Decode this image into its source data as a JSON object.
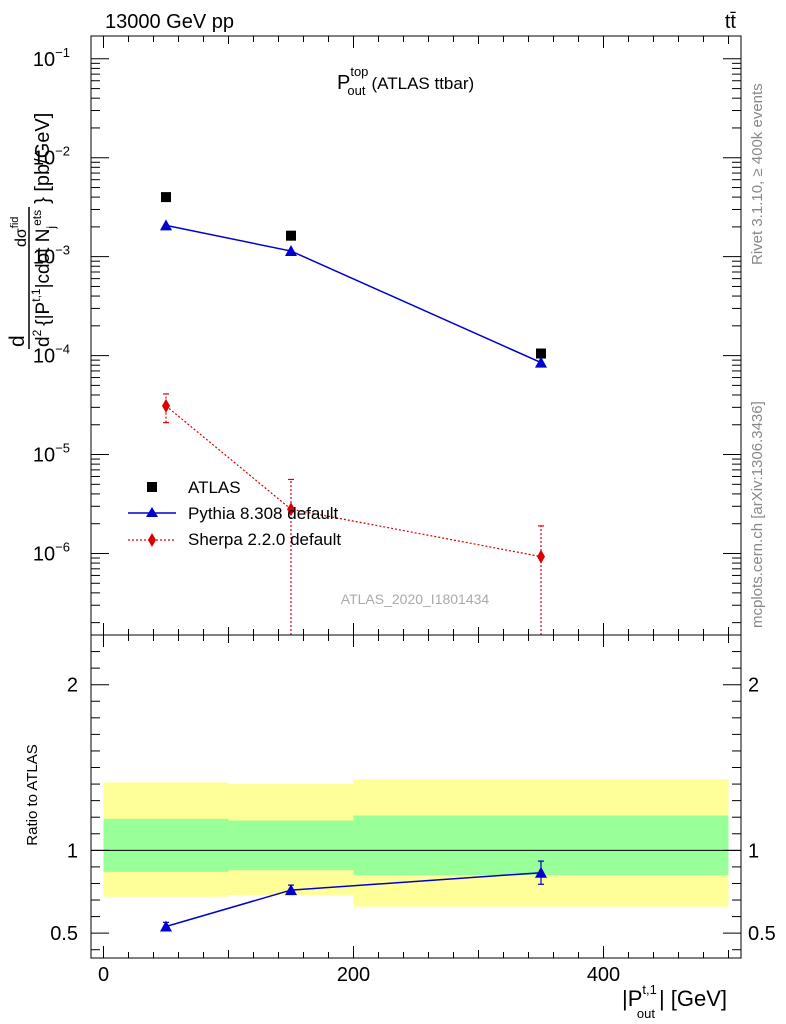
{
  "header": {
    "energy_label": "13000 GeV pp",
    "process_label": "tt̄"
  },
  "side_labels": {
    "rivet": "Rivet 3.1.10, ≥ 400k events",
    "mcplots": "mcplots.cern.ch [arXiv:1306.3436]"
  },
  "chart_data": [
    {
      "type": "scatter",
      "title_main": "P",
      "title_sup": "top",
      "title_sub": "out",
      "title_suffix": "(ATLAS ttbar)",
      "analysis_tag": "ATLAS_2020_I1801434",
      "ylabel_parts": [
        "d",
        "σ",
        "fid",
        "d",
        "2",
        "{|P",
        "t,1",
        "|cdot N",
        "j",
        "ets",
        "} [pb/GeV]"
      ],
      "yscale": "log",
      "ylim": [
        1.5e-07,
        0.17
      ],
      "xlim": [
        -10,
        510
      ],
      "y_ticklabels": [
        {
          "value": 1e-06,
          "base": "10",
          "exp": "−6"
        },
        {
          "value": 1e-05,
          "base": "10",
          "exp": "−5"
        },
        {
          "value": 0.0001,
          "base": "10",
          "exp": "−4"
        },
        {
          "value": 0.001,
          "base": "10",
          "exp": "−3"
        },
        {
          "value": 0.01,
          "base": "10",
          "exp": "−2"
        },
        {
          "value": 0.1,
          "base": "10",
          "exp": "−1"
        }
      ],
      "legend_position": "lower-left",
      "series": [
        {
          "name": "ATLAS",
          "color": "#000000",
          "marker": "square",
          "x": [
            50,
            150,
            350
          ],
          "y": [
            0.004,
            0.00163,
            0.000105
          ]
        },
        {
          "name": "Pythia 8.308 default",
          "color": "#0000cc",
          "marker": "triangle",
          "line": "solid",
          "x": [
            50,
            150,
            350
          ],
          "y": [
            0.00207,
            0.00114,
            8.5e-05
          ]
        },
        {
          "name": "Sherpa 2.2.0 default",
          "color": "#dd0000",
          "marker": "diamond",
          "line": "dotted",
          "x": [
            50,
            150,
            350
          ],
          "y": [
            3.1e-05,
            2.8e-06,
            9.3e-07
          ],
          "yerr_low": [
            2.1e-05,
            1e-07,
            1e-07
          ],
          "yerr_high": [
            4.1e-05,
            5.6e-06,
            1.9e-06
          ]
        }
      ]
    },
    {
      "type": "scatter",
      "ylabel": "Ratio to ATLAS",
      "xlabel_main": "|P",
      "xlabel_sup": "t,1",
      "xlabel_sub": "out",
      "xlabel_suffix": "| [GeV]",
      "xlim": [
        -10,
        510
      ],
      "ylim": [
        0.35,
        2.3
      ],
      "x_ticks": [
        0,
        200,
        400
      ],
      "y_ticks": [
        0.5,
        1,
        2
      ],
      "reference_line": 1,
      "bands": [
        {
          "x": [
            0,
            100
          ],
          "outer": [
            0.72,
            1.41
          ],
          "inner": [
            0.87,
            1.19
          ]
        },
        {
          "x": [
            100,
            200
          ],
          "outer": [
            0.73,
            1.4
          ],
          "inner": [
            0.88,
            1.18
          ]
        },
        {
          "x": [
            200,
            500
          ],
          "outer": [
            0.66,
            1.43
          ],
          "inner": [
            0.85,
            1.21
          ]
        }
      ],
      "band_colors": {
        "outer": "#ffff99",
        "inner": "#99ff99"
      },
      "series": [
        {
          "name": "Pythia 8.308 default",
          "color": "#0000cc",
          "marker": "triangle",
          "x": [
            50,
            150,
            350
          ],
          "y": [
            0.54,
            0.76,
            0.865
          ],
          "yerr_low": [
            0.525,
            0.735,
            0.795
          ],
          "yerr_high": [
            0.565,
            0.79,
            0.935
          ]
        }
      ]
    }
  ]
}
